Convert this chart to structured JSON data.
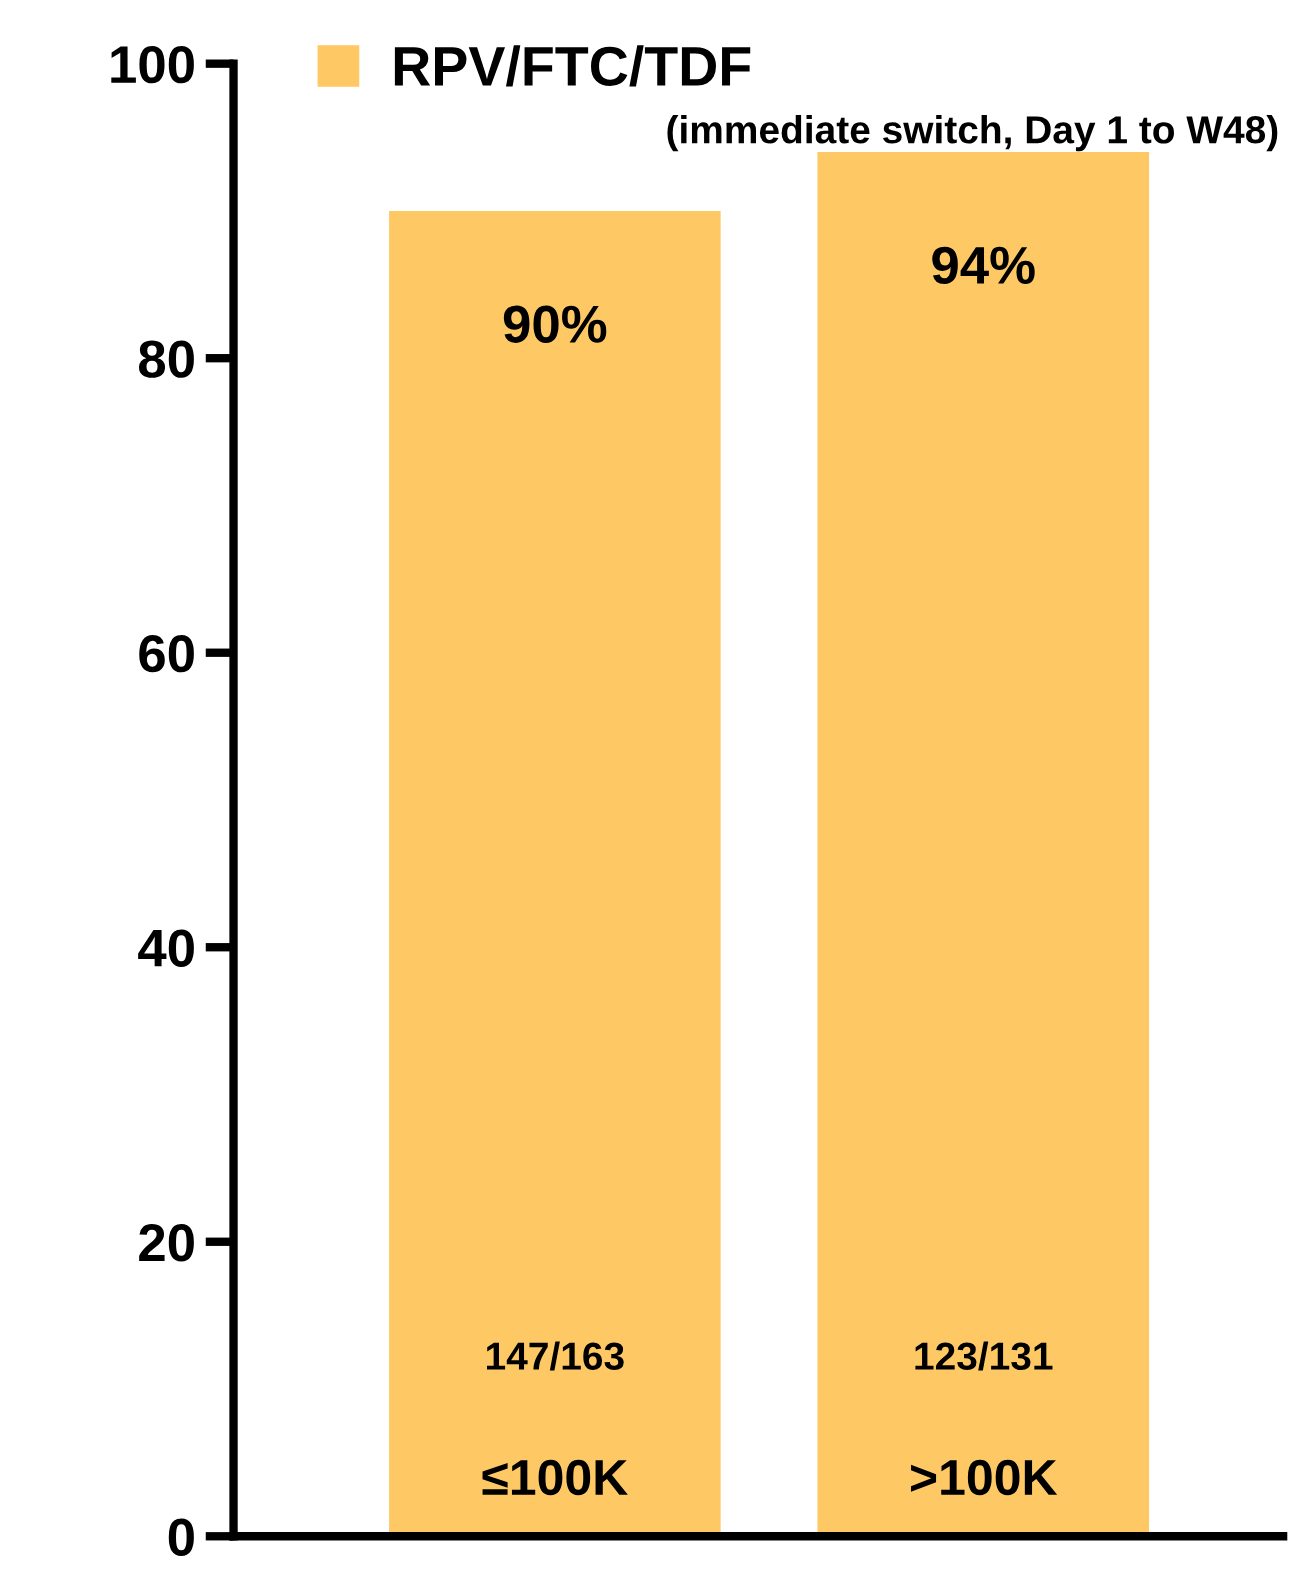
{
  "chart_data": {
    "type": "bar",
    "categories": [
      "≤100K",
      ">100K"
    ],
    "series": [
      {
        "name": "RPV/FTC/TDF",
        "color": "#fec865",
        "values": [
          90,
          94
        ],
        "value_labels": [
          "90%",
          "94%"
        ]
      }
    ],
    "ylim": [
      0,
      100
    ],
    "yticks": [
      0,
      20,
      40,
      60,
      80,
      100
    ],
    "grid": false,
    "legend": "top left",
    "annotations": [
      "(immediate switch, Day 1 to W48)",
      "147/163",
      "123/131"
    ]
  }
}
